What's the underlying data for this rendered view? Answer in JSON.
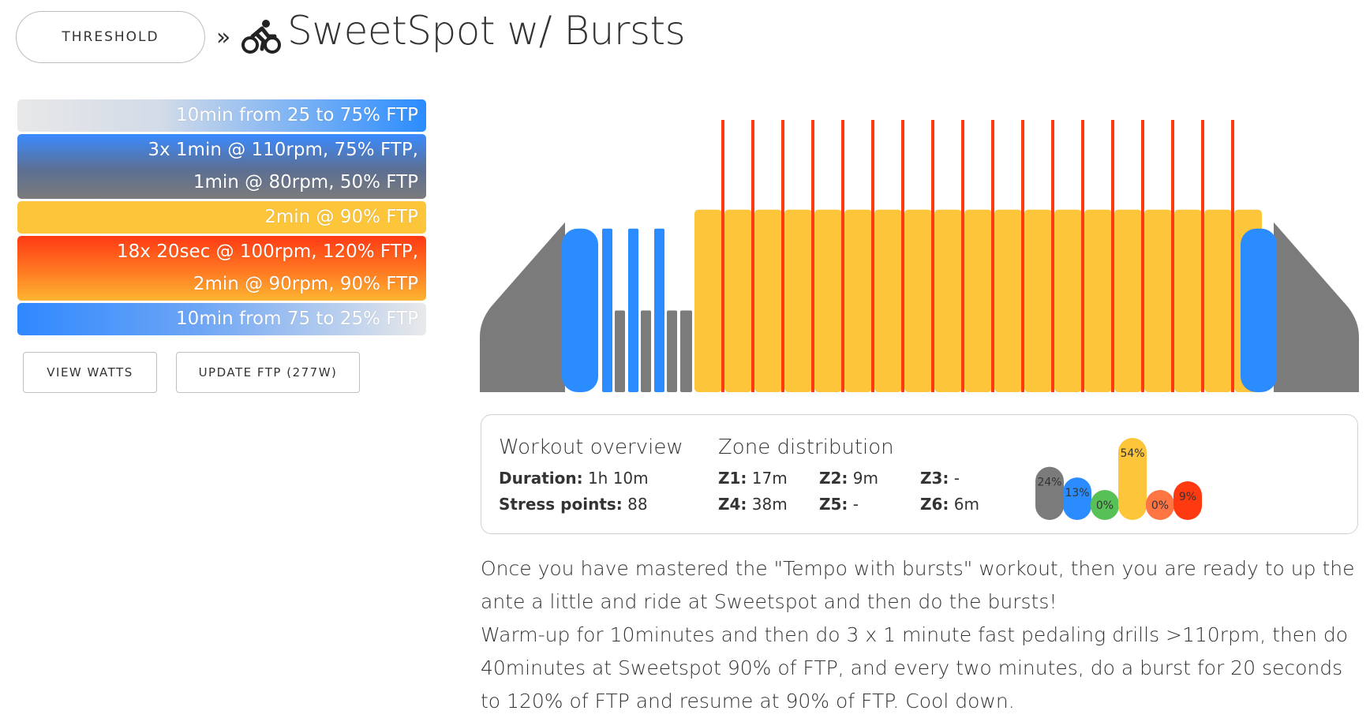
{
  "header": {
    "category": "THRESHOLD",
    "separator": "»",
    "title": "SweetSpot w/ Bursts",
    "icon": "bike-icon"
  },
  "steps": [
    {
      "lines": [
        "10min from 25 to 75% FTP"
      ]
    },
    {
      "lines": [
        "3x 1min @ 110rpm, 75% FTP,",
        "1min @ 80rpm, 50% FTP"
      ]
    },
    {
      "lines": [
        "2min @ 90% FTP"
      ]
    },
    {
      "lines": [
        "18x 20sec @ 100rpm, 120% FTP,",
        "2min @ 90rpm, 90% FTP"
      ]
    },
    {
      "lines": [
        "10min from 75 to 25% FTP"
      ]
    }
  ],
  "buttons": {
    "view_watts": "VIEW WATTS",
    "update_ftp": "UPDATE FTP (277W)"
  },
  "overview": {
    "title": "Workout overview",
    "duration_label": "Duration:",
    "duration_value": "1h 10m",
    "stress_label": "Stress points:",
    "stress_value": "88"
  },
  "zones": {
    "title": "Zone distribution",
    "items": [
      {
        "label": "Z1:",
        "value": "17m"
      },
      {
        "label": "Z2:",
        "value": "9m"
      },
      {
        "label": "Z3:",
        "value": "-"
      },
      {
        "label": "Z4:",
        "value": "38m"
      },
      {
        "label": "Z5:",
        "value": "-"
      },
      {
        "label": "Z6:",
        "value": "6m"
      }
    ],
    "distribution": [
      {
        "pct": 24,
        "label": "24%",
        "color": "#7b7b7b"
      },
      {
        "pct": 13,
        "label": "13%",
        "color": "#2b8cff"
      },
      {
        "pct": 0,
        "label": "0%",
        "color": "#57c157"
      },
      {
        "pct": 54,
        "label": "54%",
        "color": "#fcc53a"
      },
      {
        "pct": 0,
        "label": "0%",
        "color": "#ff7543"
      },
      {
        "pct": 9,
        "label": "9%",
        "color": "#ff3a10"
      }
    ]
  },
  "description": [
    "Once you have mastered the \"Tempo with bursts\" workout, then you are ready to up the ante a little and ride at Sweetspot and then do the bursts!",
    "Warm-up for 10minutes and then do 3 x 1 minute fast pedaling drills >110rpm, then do 40minutes at Sweetspot 90% of FTP, and every two minutes, do a burst for 20 seconds to 120% of FTP and resume at 90% of FTP. Cool down."
  ],
  "colors": {
    "z1": "#7b7b7b",
    "z2": "#2b8cff",
    "z4": "#fcc53a",
    "z6": "#ff3a10"
  },
  "profile": {
    "warmup": {
      "from_pct": 25,
      "to_pct": 75
    },
    "drills": {
      "repeats": 3,
      "high_pct": 75,
      "low_pct": 50
    },
    "sweetspot": {
      "repeats": 18,
      "pct": 90,
      "burst_pct": 120
    },
    "cooldown": {
      "from_pct": 75,
      "to_pct": 25
    }
  }
}
